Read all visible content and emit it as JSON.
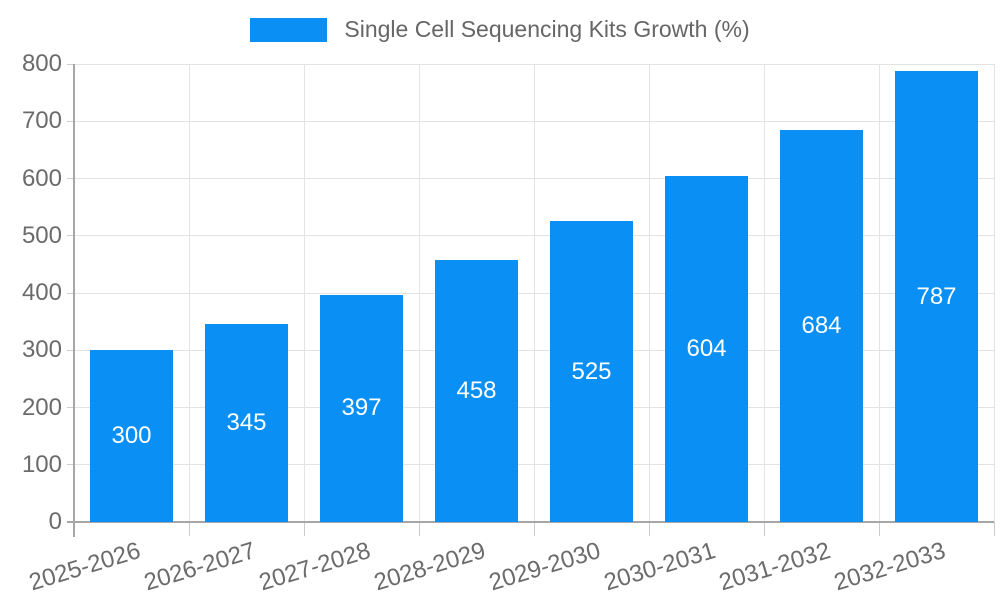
{
  "chart_data": {
    "type": "bar",
    "title": "Single Cell Sequencing Kits Growth (%)",
    "categories": [
      "2025-2026",
      "2026-2027",
      "2027-2028",
      "2028-2029",
      "2029-2030",
      "2030-2031",
      "2031-2032",
      "2032-2033"
    ],
    "values": [
      300,
      345,
      397,
      458,
      525,
      604,
      684,
      787
    ],
    "xlabel": "",
    "ylabel": "",
    "ylim": [
      0,
      800
    ],
    "yticks": [
      0,
      100,
      200,
      300,
      400,
      500,
      600,
      700,
      800
    ],
    "grid": true,
    "legend_position": "top",
    "x_label_rotation_deg": -17,
    "bar_labels_inside": true
  },
  "colors": {
    "bar": "#0a90f5",
    "grid": "#e3e3e3",
    "tick": "#cccccc",
    "axis": "#a6a6a6",
    "tick_text": "#6b6b6b",
    "legend_text": "#666666",
    "bar_label_text": "#ffffff",
    "background": "#ffffff"
  }
}
